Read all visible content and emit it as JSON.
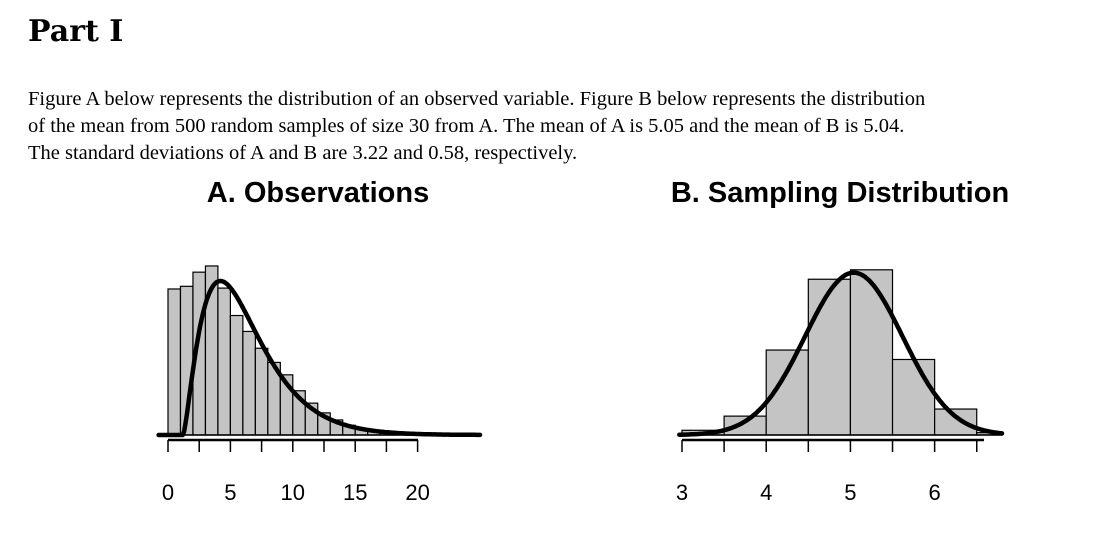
{
  "heading": "Part I",
  "intro_lines": [
    "Figure A below represents the distribution of an observed variable. Figure B below represents the distribution",
    "of the mean from 500 random samples of size 30 from A. The mean of A is 5.05 and the mean of B is 5.04.",
    "The standard deviations of A and B are 3.22 and 0.58, respectively."
  ],
  "chart_data": [
    {
      "type": "bar",
      "title": "A. Observations",
      "xlabel": "",
      "ylabel": "",
      "xlim": [
        0,
        25
      ],
      "x_ticks": [
        0,
        5,
        10,
        15,
        20
      ],
      "axis_tick_positions": [
        0,
        2.5,
        5,
        7.5,
        10,
        12.5,
        15,
        17.5,
        20
      ],
      "bin_width": 1,
      "bin_edges": [
        0,
        1,
        2,
        3,
        4,
        5,
        6,
        7,
        8,
        9,
        10,
        11,
        12,
        13,
        14,
        15,
        16,
        17,
        18,
        19,
        20,
        21,
        22,
        23,
        24,
        25
      ],
      "values": [
        0.165,
        0.168,
        0.184,
        0.191,
        0.166,
        0.135,
        0.117,
        0.098,
        0.082,
        0.068,
        0.05,
        0.036,
        0.025,
        0.017,
        0.011,
        0.007,
        0.004,
        0.003,
        0.002,
        0.001,
        0.0006,
        0.0004,
        0.0003,
        0.0002,
        0.0001
      ],
      "overlay_curve": {
        "type": "density",
        "mean": 5.05,
        "sd": 3.22,
        "peak_x": 4.2,
        "peak_density": 0.174
      },
      "ylim": [
        0,
        0.2
      ],
      "grid": false,
      "legend": "none"
    },
    {
      "type": "bar",
      "title": "B. Sampling Distribution",
      "xlabel": "",
      "ylabel": "",
      "xlim": [
        3.0,
        6.8
      ],
      "x_ticks": [
        3.0,
        4.0,
        5.0,
        6.0
      ],
      "axis_tick_positions": [
        3.0,
        3.5,
        4.0,
        4.5,
        5.0,
        5.5,
        6.0,
        6.5
      ],
      "bin_width": 0.5,
      "bin_edges": [
        3.0,
        3.5,
        4.0,
        4.5,
        5.0,
        5.5,
        6.0,
        6.5,
        7.0
      ],
      "values": [
        0.02,
        0.08,
        0.36,
        0.66,
        0.7,
        0.32,
        0.11,
        0.01
      ],
      "overlay_curve": {
        "type": "normal",
        "mean": 5.04,
        "sd": 0.58
      },
      "ylim": [
        0,
        0.75
      ],
      "grid": false,
      "legend": "none"
    }
  ]
}
